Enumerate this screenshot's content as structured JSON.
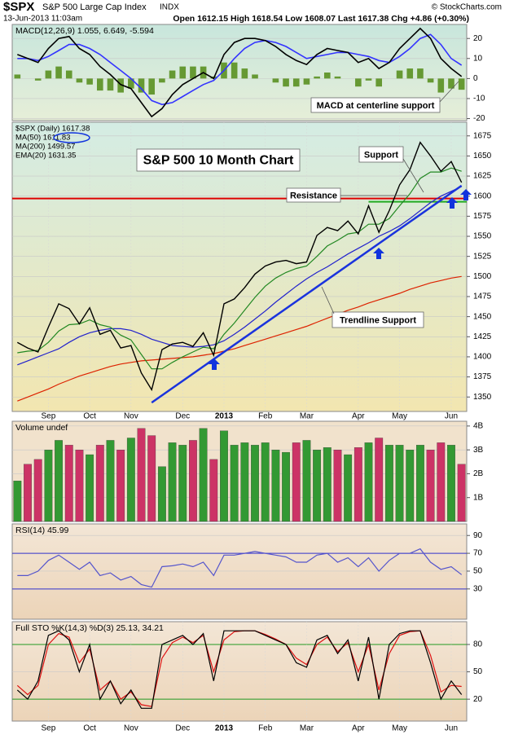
{
  "header": {
    "symbol": "$SPX",
    "name": "S&P 500 Large Cap Index",
    "exchange": "INDX",
    "date": "13-Jun-2013 11:03am",
    "quote": "Open 1612.15 High 1618.54 Low 1608.07 Last 1617.38 Chg +4.86 (+0.30%)",
    "credit": "© StockCharts.com"
  },
  "chart_data": [
    {
      "type": "line",
      "legend": "MACD(12,26,9) 1.055, 6.649, -5.594",
      "ylim": [
        -21,
        27
      ],
      "yticks": [
        20,
        10,
        0,
        -10,
        -20
      ],
      "annotations": [
        {
          "text": "MACD at centerline support",
          "color": "#0000cc"
        }
      ],
      "series": [
        {
          "style": "bar",
          "color": "#669933",
          "values": [
            2,
            0,
            -1,
            4,
            6,
            4,
            -2,
            -3,
            -6,
            -6,
            -7,
            -5,
            -7,
            -8,
            -2,
            4,
            6,
            6,
            6,
            1,
            8,
            8,
            5,
            2,
            0,
            -2,
            -4,
            -4,
            -3,
            1,
            3,
            1,
            0,
            -4,
            -1,
            -4,
            0,
            4,
            5,
            5,
            -2,
            -7,
            -5,
            -5.6
          ]
        },
        {
          "style": "line",
          "color": "#3333ff",
          "values": [
            10,
            10,
            9,
            11,
            14,
            17,
            17,
            15,
            12,
            8,
            4,
            0,
            -5,
            -11,
            -13,
            -12,
            -9,
            -6,
            -3,
            -1,
            4,
            10,
            15,
            18,
            19,
            18,
            16,
            13,
            10,
            11,
            12,
            13,
            13,
            12,
            11,
            9,
            8,
            11,
            15,
            20,
            22,
            17,
            10,
            6.6
          ]
        },
        {
          "style": "line",
          "color": "#000000",
          "values": [
            12,
            10,
            8,
            15,
            20,
            21,
            15,
            12,
            6,
            2,
            -3,
            -5,
            -12,
            -19,
            -15,
            -8,
            -3,
            0,
            3,
            0,
            12,
            18,
            20,
            20,
            19,
            16,
            12,
            9,
            7,
            12,
            15,
            14,
            13,
            8,
            10,
            5,
            8,
            15,
            20,
            25,
            20,
            10,
            5,
            1
          ]
        }
      ]
    },
    {
      "type": "line",
      "ylim": [
        1332,
        1692
      ],
      "yticks": [
        1350,
        1375,
        1400,
        1425,
        1450,
        1475,
        1500,
        1525,
        1550,
        1575,
        1600,
        1625,
        1650,
        1675
      ],
      "categories": [
        null,
        null,
        null,
        "Sep",
        null,
        null,
        null,
        "Oct",
        null,
        null,
        null,
        "Nov",
        null,
        null,
        null,
        null,
        "Dec",
        null,
        null,
        null,
        "2013",
        null,
        null,
        null,
        "Feb",
        null,
        null,
        null,
        "Mar",
        null,
        null,
        null,
        null,
        "Apr",
        null,
        null,
        null,
        "May",
        null,
        null,
        null,
        null,
        "Jun",
        null
      ],
      "annotations": [
        {
          "text": "S&P 500 10 Month Chart",
          "color": "#118888"
        },
        {
          "text": "Support",
          "color": "#117711"
        },
        {
          "text": "Resistance",
          "color": "#dd0000"
        },
        {
          "text": "Trendline Support",
          "color": "#0000cc"
        }
      ],
      "resistance": {
        "value": 1597,
        "color": "#dd0000"
      },
      "support": {
        "value": 1593,
        "color": "#22aa22"
      },
      "trendline": {
        "from": 1343,
        "to": 1613,
        "color": "#1a33dd"
      },
      "series": [
        {
          "name": "MA(200) 1499.57",
          "color": "#dd2200",
          "values": [
            1345,
            1350,
            1355,
            1360,
            1366,
            1371,
            1376,
            1380,
            1384,
            1388,
            1391,
            1393,
            1395,
            1396,
            1397,
            1398,
            1399,
            1400,
            1402,
            1404,
            1407,
            1410,
            1414,
            1418,
            1422,
            1426,
            1430,
            1434,
            1438,
            1443,
            1448,
            1453,
            1458,
            1462,
            1467,
            1471,
            1475,
            1479,
            1484,
            1488,
            1492,
            1495,
            1498,
            1500
          ]
        },
        {
          "name": "MA(50) 1611.83",
          "color": "#2222cc",
          "values": [
            1390,
            1395,
            1400,
            1405,
            1410,
            1418,
            1425,
            1430,
            1433,
            1435,
            1435,
            1433,
            1428,
            1422,
            1418,
            1414,
            1413,
            1412,
            1413,
            1415,
            1420,
            1428,
            1437,
            1447,
            1457,
            1468,
            1478,
            1488,
            1497,
            1505,
            1512,
            1520,
            1528,
            1535,
            1542,
            1550,
            1556,
            1563,
            1572,
            1582,
            1592,
            1600,
            1606,
            1612
          ]
        },
        {
          "name": "EMA(20) 1631.35",
          "color": "#228822",
          "values": [
            1405,
            1407,
            1408,
            1418,
            1432,
            1440,
            1441,
            1446,
            1440,
            1437,
            1427,
            1421,
            1403,
            1385,
            1385,
            1393,
            1400,
            1406,
            1412,
            1410,
            1428,
            1442,
            1458,
            1474,
            1488,
            1498,
            1505,
            1510,
            1513,
            1525,
            1538,
            1545,
            1553,
            1555,
            1565,
            1565,
            1572,
            1588,
            1603,
            1622,
            1630,
            1630,
            1635,
            1631
          ]
        },
        {
          "name": "$SPX (Daily) 1617.38",
          "color": "#000000",
          "values": [
            1418,
            1411,
            1406,
            1437,
            1466,
            1460,
            1441,
            1461,
            1428,
            1433,
            1411,
            1414,
            1380,
            1359,
            1409,
            1416,
            1418,
            1413,
            1430,
            1402,
            1466,
            1472,
            1486,
            1503,
            1513,
            1518,
            1520,
            1516,
            1518,
            1551,
            1561,
            1557,
            1569,
            1553,
            1588,
            1555,
            1582,
            1614,
            1633,
            1667,
            1650,
            1631,
            1643,
            1617
          ]
        }
      ]
    },
    {
      "type": "bar",
      "legend": "Volume undef",
      "ylim": [
        0,
        4.2
      ],
      "up_color": "#339933",
      "down_color": "#cc3366",
      "yticks": [
        {
          "value": 1,
          "label": "1B"
        },
        {
          "value": 2,
          "label": "2B"
        },
        {
          "value": 3,
          "label": "3B"
        },
        {
          "value": 4,
          "label": "4B"
        }
      ],
      "values": [
        1.7,
        2.4,
        2.6,
        3.0,
        3.4,
        3.2,
        3.0,
        2.8,
        3.2,
        3.4,
        3.0,
        3.5,
        3.9,
        3.6,
        2.3,
        3.3,
        3.2,
        3.4,
        3.9,
        2.6,
        3.8,
        3.2,
        3.3,
        3.2,
        3.3,
        3.0,
        2.9,
        3.3,
        3.4,
        3.0,
        3.1,
        3.0,
        2.8,
        3.1,
        3.3,
        3.5,
        3.2,
        3.2,
        3.0,
        3.2,
        3.0,
        3.3,
        3.2,
        2.4
      ]
    },
    {
      "type": "line",
      "legend": "RSI(14) 45.99",
      "ylim": [
        -4,
        103
      ],
      "yticks": [
        30,
        50,
        70,
        90
      ],
      "levels": [
        30,
        70
      ],
      "level_color": "#3333cc",
      "series": [
        {
          "color": "#5555cc",
          "values": [
            45,
            45,
            50,
            62,
            68,
            60,
            52,
            60,
            45,
            48,
            40,
            44,
            35,
            32,
            55,
            56,
            58,
            55,
            60,
            45,
            68,
            68,
            70,
            72,
            70,
            68,
            66,
            60,
            60,
            68,
            70,
            60,
            65,
            55,
            65,
            50,
            62,
            70,
            70,
            75,
            60,
            52,
            55,
            46
          ]
        }
      ]
    },
    {
      "type": "line",
      "legend": "Full STO %K(14,3) %D(3) 25.13, 34.21",
      "ylim": [
        -4,
        105
      ],
      "yticks": [
        20,
        50,
        80
      ],
      "levels": [
        20,
        80
      ],
      "level_color": "#229922",
      "categories": [
        null,
        null,
        null,
        "Sep",
        null,
        null,
        null,
        "Oct",
        null,
        null,
        null,
        "Nov",
        null,
        null,
        null,
        null,
        "Dec",
        null,
        null,
        null,
        "2013",
        null,
        null,
        null,
        "Feb",
        null,
        null,
        null,
        "Mar",
        null,
        null,
        null,
        null,
        "Apr",
        null,
        null,
        null,
        "May",
        null,
        null,
        null,
        null,
        "Jun",
        null
      ],
      "series": [
        {
          "color": "#dd1111",
          "values": [
            35,
            25,
            35,
            80,
            92,
            88,
            60,
            75,
            30,
            40,
            20,
            28,
            14,
            12,
            65,
            82,
            88,
            82,
            90,
            50,
            85,
            94,
            95,
            95,
            91,
            86,
            80,
            65,
            58,
            80,
            88,
            72,
            82,
            50,
            80,
            30,
            70,
            90,
            94,
            95,
            68,
            28,
            35,
            34
          ]
        },
        {
          "color": "#000000",
          "values": [
            30,
            20,
            40,
            90,
            95,
            85,
            50,
            80,
            20,
            40,
            15,
            30,
            10,
            10,
            80,
            85,
            90,
            80,
            92,
            40,
            95,
            95,
            95,
            95,
            90,
            85,
            80,
            60,
            55,
            85,
            90,
            70,
            85,
            40,
            88,
            20,
            80,
            92,
            95,
            95,
            60,
            20,
            40,
            25
          ]
        }
      ]
    }
  ]
}
